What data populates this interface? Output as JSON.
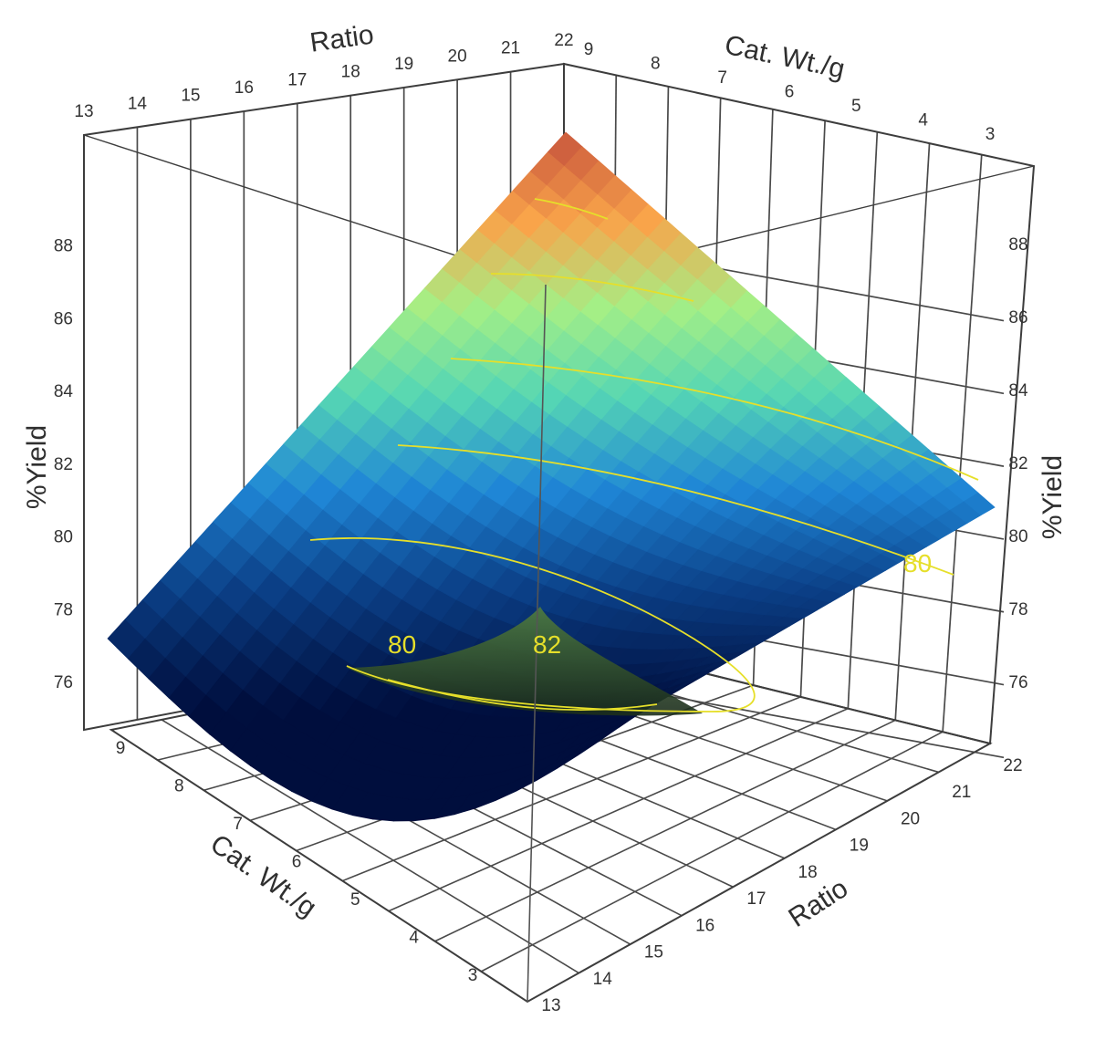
{
  "chart_data": {
    "type": "surface",
    "title": "",
    "z_label": "%Yield",
    "ratio_axis": {
      "label": "Ratio",
      "range": [
        13,
        22
      ],
      "ticks": [
        "13",
        "14",
        "15",
        "16",
        "17",
        "18",
        "19",
        "20",
        "21",
        "22"
      ]
    },
    "catwt_axis": {
      "label": "Cat. Wt./g",
      "range": [
        3,
        9
      ],
      "ticks": [
        "3",
        "4",
        "5",
        "6",
        "7",
        "8",
        "9"
      ]
    },
    "yield_axis": {
      "label": "%Yield",
      "range": [
        74.7,
        90
      ],
      "ticks": [
        "76",
        "78",
        "80",
        "82",
        "84",
        "86",
        "88"
      ]
    },
    "surface_corners": [
      {
        "ratio": 13,
        "cat_wt": 3,
        "yield": 78.2
      },
      {
        "ratio": 13,
        "cat_wt": 9,
        "yield": 76.6
      },
      {
        "ratio": 22,
        "cat_wt": 9,
        "yield": 89.8
      },
      {
        "ratio": 22,
        "cat_wt": 3,
        "yield": 79.6
      }
    ],
    "minimum_region": {
      "ratio": 17.3,
      "cat_wt": 5.8,
      "yield": 76.3
    },
    "contour_levels": [
      80,
      82,
      84,
      86,
      88
    ],
    "contour_labels": [
      "80",
      "82",
      "80"
    ],
    "colorscale": [
      "#000e3d",
      "#0b3f86",
      "#1f86d6",
      "#55d6b4",
      "#a5ef85",
      "#f9a44a",
      "#c8553d"
    ],
    "contour_color": "#e6df2a",
    "grid": true
  }
}
